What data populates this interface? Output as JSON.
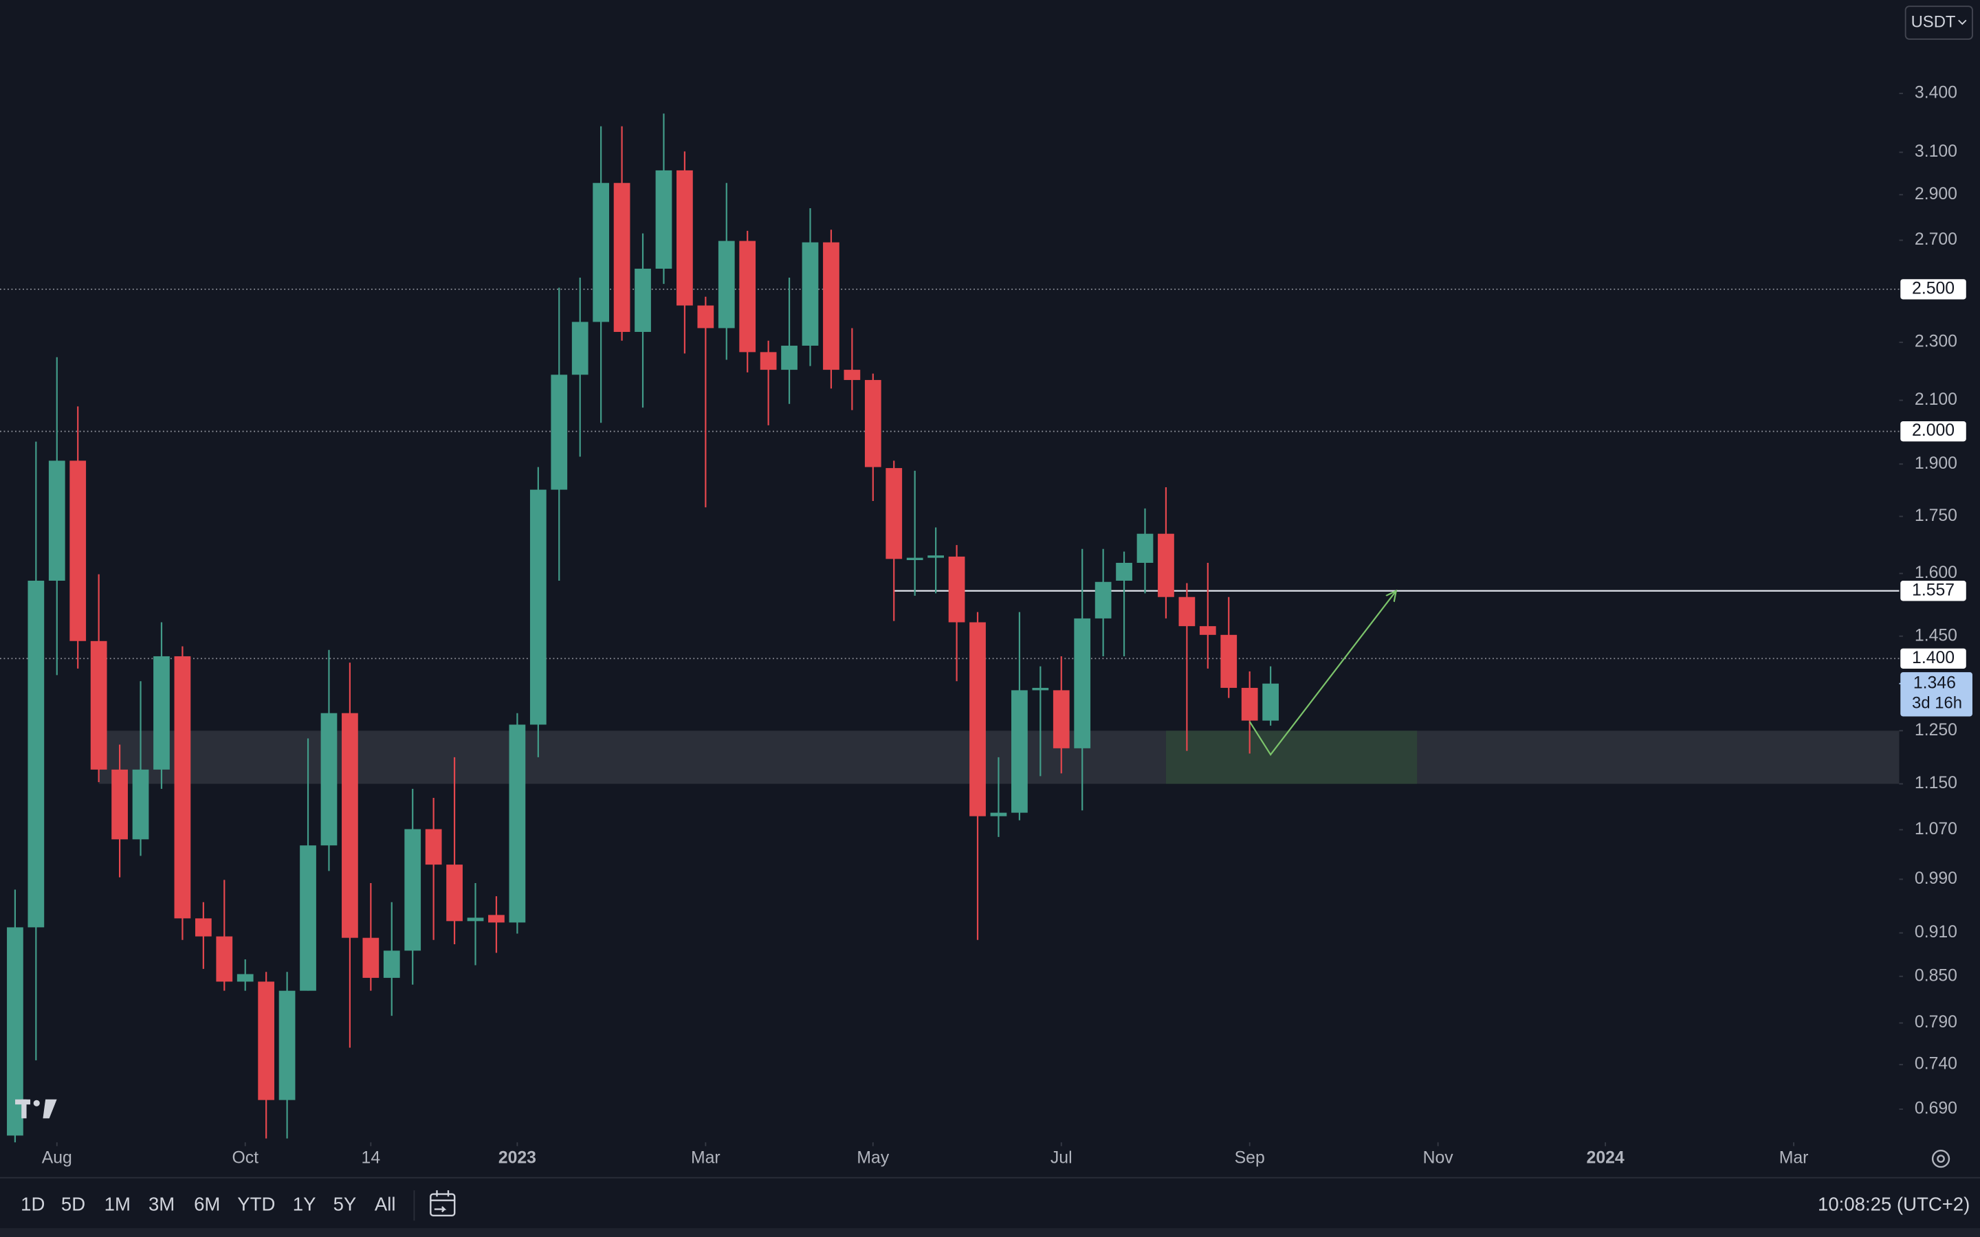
{
  "chart_data": {
    "type": "candlestick",
    "log": true,
    "up_color": "#429c89",
    "down_color": "#e5474e",
    "ylim": [
      0.655,
      3.937
    ],
    "yticks": [
      {
        "value": 3.4,
        "label": "3.400"
      },
      {
        "value": 3.1,
        "label": "3.100"
      },
      {
        "value": 2.9,
        "label": "2.900"
      },
      {
        "value": 2.7,
        "label": "2.700"
      },
      {
        "value": 2.3,
        "label": "2.300"
      },
      {
        "value": 2.1,
        "label": "2.100"
      },
      {
        "value": 1.9,
        "label": "1.900"
      },
      {
        "value": 1.75,
        "label": "1.750"
      },
      {
        "value": 1.6,
        "label": "1.600"
      },
      {
        "value": 1.45,
        "label": "1.450"
      },
      {
        "value": 1.25,
        "label": "1.250"
      },
      {
        "value": 1.15,
        "label": "1.150"
      },
      {
        "value": 1.07,
        "label": "1.070"
      },
      {
        "value": 0.99,
        "label": "0.990"
      },
      {
        "value": 0.91,
        "label": "0.910"
      },
      {
        "value": 0.85,
        "label": "0.850"
      },
      {
        "value": 0.79,
        "label": "0.790"
      },
      {
        "value": 0.74,
        "label": "0.740"
      },
      {
        "value": 0.69,
        "label": "0.690"
      }
    ],
    "xlim": [
      -0.72,
      90.04
    ],
    "xticks": [
      {
        "value": 2,
        "label": "Aug"
      },
      {
        "value": 11,
        "label": "Oct"
      },
      {
        "value": 17,
        "label": "14"
      },
      {
        "value": 24,
        "label": "2023",
        "bold": true
      },
      {
        "value": 33,
        "label": "Mar"
      },
      {
        "value": 41,
        "label": "May"
      },
      {
        "value": 50,
        "label": "Jul"
      },
      {
        "value": 59,
        "label": "Sep"
      },
      {
        "value": 68,
        "label": "Nov"
      },
      {
        "value": 76,
        "label": "2024",
        "bold": true
      },
      {
        "value": 85,
        "label": "Mar"
      }
    ],
    "open": [
      0.662,
      0.918,
      1.582,
      1.91,
      1.439,
      1.176,
      1.054,
      1.176,
      1.405,
      0.931,
      0.905,
      0.843,
      0.843,
      0.7,
      0.831,
      1.044,
      1.285,
      0.903,
      0.848,
      0.885,
      1.071,
      1.013,
      0.927,
      0.936,
      0.925,
      1.262,
      1.825,
      2.186,
      2.375,
      2.954,
      2.338,
      2.582,
      3.013,
      2.437,
      2.352,
      2.697,
      2.265,
      2.203,
      2.288,
      2.691,
      2.203,
      2.168,
      1.888,
      1.634,
      1.64,
      1.643,
      1.482,
      1.093,
      1.099,
      1.332,
      1.332,
      1.216,
      1.491,
      1.582,
      1.627,
      1.703,
      1.542,
      1.473,
      1.453,
      1.337,
      1.27
    ],
    "high": [
      0.974,
      1.968,
      2.247,
      2.08,
      1.598,
      1.223,
      1.351,
      1.482,
      1.427,
      0.955,
      0.989,
      0.873,
      0.856,
      0.856,
      1.235,
      1.419,
      1.391,
      0.984,
      0.955,
      1.141,
      1.125,
      1.199,
      0.984,
      0.964,
      1.285,
      1.891,
      2.506,
      2.546,
      3.229,
      3.229,
      2.729,
      3.294,
      3.104,
      2.471,
      2.954,
      2.74,
      2.306,
      2.546,
      2.839,
      2.745,
      2.352,
      2.19,
      1.91,
      1.88,
      1.72,
      1.673,
      1.506,
      1.199,
      1.506,
      1.383,
      1.405,
      1.663,
      1.663,
      1.656,
      1.772,
      1.832,
      1.576,
      1.627,
      1.542,
      1.372,
      1.383
    ],
    "low": [
      0.655,
      0.745,
      1.364,
      1.378,
      1.153,
      0.993,
      1.027,
      1.141,
      0.9,
      0.86,
      0.831,
      0.831,
      0.659,
      0.659,
      0.831,
      1.003,
      0.76,
      0.831,
      0.799,
      0.839,
      0.9,
      0.894,
      0.865,
      0.882,
      0.909,
      1.199,
      1.582,
      1.922,
      2.027,
      2.306,
      2.076,
      2.521,
      2.26,
      1.775,
      2.238,
      2.194,
      2.019,
      2.088,
      2.216,
      2.139,
      2.068,
      1.793,
      1.485,
      1.545,
      1.551,
      1.351,
      0.9,
      1.058,
      1.086,
      1.164,
      1.169,
      1.103,
      1.405,
      1.405,
      1.551,
      1.491,
      1.211,
      1.378,
      1.316,
      1.206,
      1.26
    ],
    "close": [
      0.918,
      1.582,
      1.91,
      1.439,
      1.176,
      1.054,
      1.176,
      1.405,
      0.931,
      0.905,
      0.843,
      0.853,
      0.7,
      0.831,
      1.044,
      1.285,
      0.903,
      0.848,
      0.885,
      1.071,
      1.013,
      0.927,
      0.932,
      0.925,
      1.262,
      1.825,
      2.186,
      2.375,
      2.954,
      2.338,
      2.582,
      3.013,
      2.437,
      2.352,
      2.697,
      2.265,
      2.203,
      2.288,
      2.691,
      2.203,
      2.168,
      1.891,
      1.637,
      1.64,
      1.646,
      1.482,
      1.093,
      1.099,
      1.332,
      1.337,
      1.216,
      1.491,
      1.579,
      1.627,
      1.703,
      1.542,
      1.473,
      1.453,
      1.337,
      1.27,
      1.346
    ],
    "levels": [
      {
        "value": 2.5,
        "label": "2.500",
        "style": "dotted"
      },
      {
        "value": 2.0,
        "label": "2.000",
        "style": "dotted"
      },
      {
        "value": 1.557,
        "label": "1.557",
        "style": "solid",
        "from": 42
      },
      {
        "value": 1.4,
        "label": "1.400",
        "style": "dotted"
      }
    ],
    "last_price": {
      "value": 1.346,
      "label": "1.346",
      "countdown": "3d 16h"
    },
    "zones": [
      {
        "from": 4,
        "low": 1.15,
        "high": 1.25,
        "color": "#2f323c"
      },
      {
        "from": 55,
        "to": 67,
        "low": 1.15,
        "high": 1.25,
        "color": "#2d4437"
      }
    ],
    "arrow": {
      "x": [
        59,
        60,
        66
      ],
      "y": [
        1.268,
        1.204,
        1.557
      ],
      "color": "#7cc46b"
    }
  },
  "currency": "USDT",
  "toolbar": [
    "1D",
    "5D",
    "1M",
    "3M",
    "6M",
    "YTD",
    "1Y",
    "5Y",
    "All"
  ],
  "clock": "10:08:25 (UTC+2)"
}
